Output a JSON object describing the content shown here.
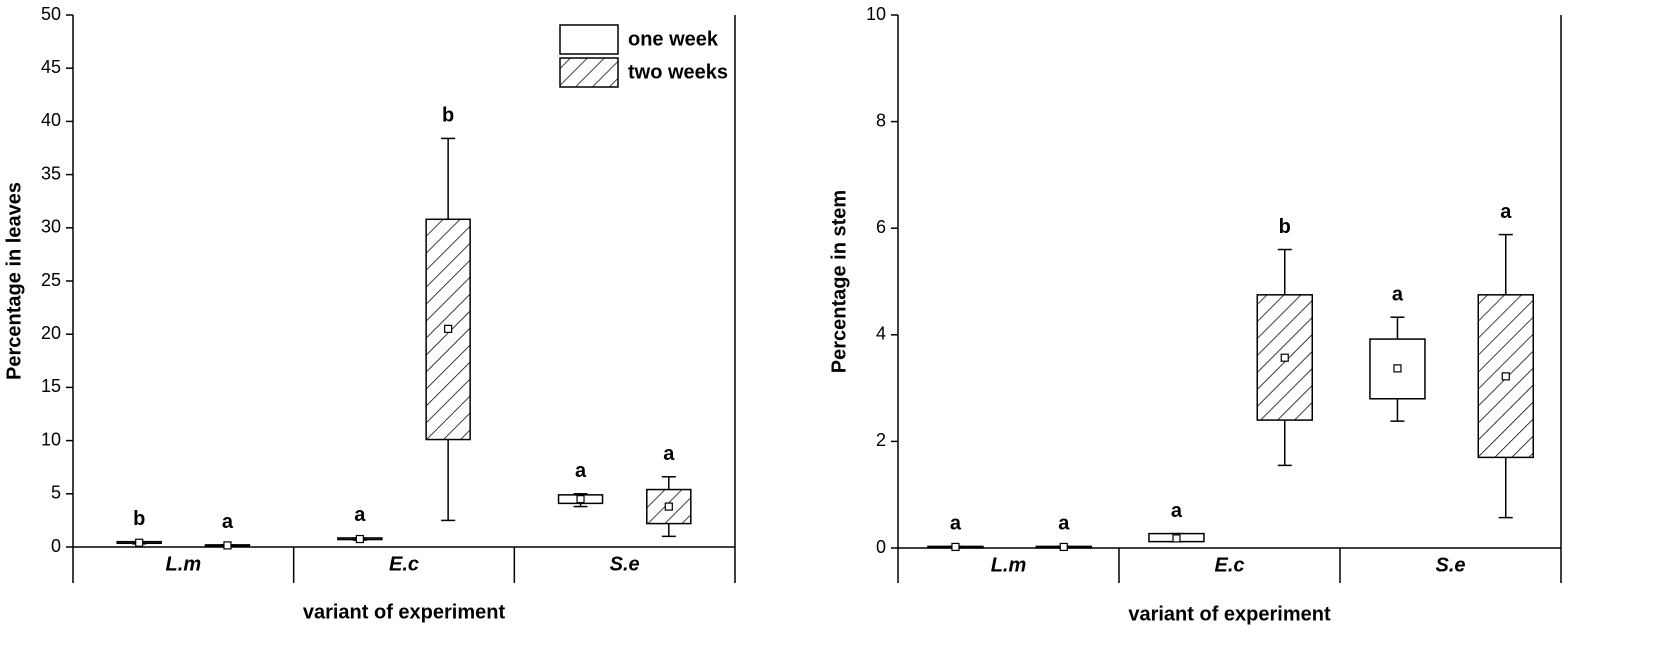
{
  "chart_data": [
    {
      "type": "box",
      "y_label": "Percentage in leaves",
      "x_label": "variant of experiment",
      "categories": [
        "L.m",
        "E.c",
        "S.e"
      ],
      "ylim": [
        0,
        50
      ],
      "yticks": [
        0,
        5,
        10,
        15,
        20,
        25,
        30,
        35,
        40,
        45,
        50
      ],
      "legend": "upper right",
      "series": [
        {
          "name": "one week",
          "color": "#ffffff",
          "pattern": "none",
          "min": [
            0.3,
            0.65,
            3.8
          ],
          "q1": [
            0.35,
            0.7,
            4.1
          ],
          "q3": [
            0.5,
            0.85,
            4.9
          ],
          "max": [
            0.5,
            0.85,
            5.0
          ],
          "mean": [
            0.4,
            0.75,
            4.5
          ],
          "letters": [
            "b",
            "a",
            "a"
          ]
        },
        {
          "name": "two weeks",
          "color": "#ffffff",
          "pattern": "hatch",
          "min": [
            0.1,
            2.5,
            1.0
          ],
          "q1": [
            0.1,
            10.1,
            2.2
          ],
          "q3": [
            0.2,
            30.8,
            5.4
          ],
          "max": [
            0.2,
            38.4,
            6.6
          ],
          "mean": [
            0.15,
            20.5,
            3.8
          ],
          "letters": [
            "a",
            "b",
            "a"
          ]
        }
      ]
    },
    {
      "type": "box",
      "y_label": "Percentage in stem",
      "x_label": "variant of experiment",
      "categories": [
        "L.m",
        "E.c",
        "S.e"
      ],
      "ylim": [
        0,
        10
      ],
      "yticks": [
        0,
        2,
        4,
        6,
        8,
        10
      ],
      "series": [
        {
          "color": "#ffffff",
          "pattern": "none",
          "min": [
            0.01,
            0.12,
            2.38
          ],
          "q1": [
            0.01,
            0.12,
            2.8
          ],
          "q3": [
            0.03,
            0.27,
            3.92
          ],
          "max": [
            0.03,
            0.27,
            4.33
          ],
          "mean": [
            0.02,
            0.18,
            3.37
          ],
          "letters": [
            "a",
            "a",
            "a"
          ]
        },
        {
          "color": "#ffffff",
          "pattern": "hatch",
          "min": [
            0.01,
            1.55,
            0.57
          ],
          "q1": [
            0.01,
            2.4,
            1.7
          ],
          "q3": [
            0.03,
            4.75,
            4.75
          ],
          "max": [
            0.03,
            5.6,
            5.88
          ],
          "mean": [
            0.02,
            3.57,
            3.22
          ],
          "letters": [
            "a",
            "b",
            "a"
          ]
        }
      ]
    }
  ]
}
